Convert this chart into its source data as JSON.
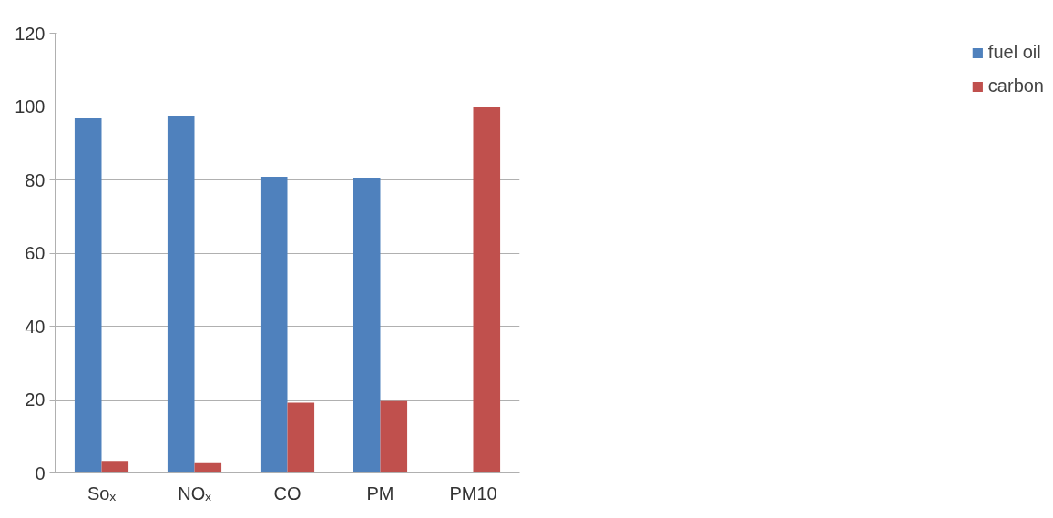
{
  "chart_data": {
    "type": "bar",
    "categories": [
      "Soₓ",
      "NOₓ",
      "CO",
      "PM",
      "PM10"
    ],
    "series": [
      {
        "name": "fuel oil",
        "color": "#4f81bd",
        "values": [
          96.8,
          97.5,
          80.9,
          80.5,
          0
        ]
      },
      {
        "name": "carbon",
        "color": "#c0504d",
        "values": [
          3.3,
          2.7,
          19.1,
          19.8,
          100
        ]
      }
    ],
    "ylim": [
      0,
      120
    ],
    "yticks": [
      0,
      20,
      40,
      60,
      80,
      100,
      120
    ],
    "grid": "y",
    "legend": "right"
  }
}
